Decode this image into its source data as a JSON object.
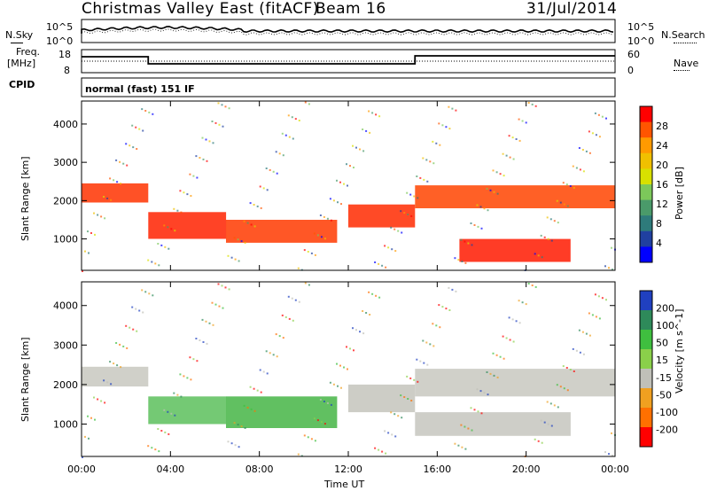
{
  "header": {
    "station": "Christmas Valley East (fitACF)",
    "beam": "Beam 16",
    "date": "31/Jul/2014"
  },
  "panels": {
    "noise_left": "N.Sky",
    "noise_right": "N.Search",
    "noise_scale_top": "10^5",
    "noise_scale_bottom": "10^0",
    "noise_scale_top_r": "10^5",
    "noise_scale_bottom_r": "10^0",
    "freq_label_1": "Freq.",
    "freq_label_2": "[MHz]",
    "freq_tick_top": "18",
    "freq_tick_bottom": "8",
    "nave_label": "Nave",
    "nave_tick_top": "60",
    "nave_tick_bottom": "0",
    "cpid_label": "CPID",
    "cpid_value": "normal (fast) 151 IF"
  },
  "chart_data": [
    {
      "type": "heatmap",
      "ylabel": "Slant Range [km]",
      "xlabel": "",
      "ylim": [
        180,
        4600
      ],
      "y_ticks": [
        "1000",
        "2000",
        "3000",
        "4000"
      ],
      "colorbar_label": "Power [dB]",
      "colorbar_ticks": [
        "28",
        "24",
        "20",
        "16",
        "12",
        "8",
        "4"
      ],
      "colorbar_colors": [
        "#ff0000",
        "#ff5500",
        "#ff9a00",
        "#f0c000",
        "#d8e000",
        "#7cc85a",
        "#4a9a6a",
        "#2e7b7b",
        "#2040a0",
        "#0000ff"
      ],
      "bands": [
        {
          "t0": 0.0,
          "t1": 3.0,
          "r0": 1950,
          "r1": 2450,
          "color": "#ff3300"
        },
        {
          "t0": 3.0,
          "t1": 6.5,
          "r0": 1000,
          "r1": 1700,
          "color": "#ff2200"
        },
        {
          "t0": 6.5,
          "t1": 11.5,
          "r0": 900,
          "r1": 1500,
          "color": "#ff3a00"
        },
        {
          "t0": 12.0,
          "t1": 15.0,
          "r0": 1300,
          "r1": 1900,
          "color": "#ff2a00"
        },
        {
          "t0": 15.0,
          "t1": 24.0,
          "r0": 1800,
          "r1": 2400,
          "color": "#ff4400"
        },
        {
          "t0": 17.0,
          "t1": 22.0,
          "r0": 400,
          "r1": 1000,
          "color": "#ff1a00"
        }
      ]
    },
    {
      "type": "heatmap",
      "ylabel": "Slant Range [km]",
      "xlabel": "Time UT",
      "ylim": [
        180,
        4600
      ],
      "y_ticks": [
        "1000",
        "2000",
        "3000",
        "4000"
      ],
      "x_ticks": [
        "00:00",
        "04:00",
        "08:00",
        "12:00",
        "16:00",
        "20:00",
        "00:00"
      ],
      "colorbar_label": "Velocity [m s^-1]",
      "colorbar_ticks": [
        "200",
        "100",
        "50",
        "15",
        "-15",
        "-50",
        "-100",
        "-200"
      ],
      "colorbar_colors": [
        "#2040c0",
        "#2e8a5a",
        "#3fbf3f",
        "#8ad04a",
        "#c0c0b8",
        "#f0a020",
        "#ff7000",
        "#ff0000"
      ],
      "bands": [
        {
          "t0": 0.0,
          "t1": 3.0,
          "r0": 1950,
          "r1": 2450,
          "color": "#c8c8c0"
        },
        {
          "t0": 3.0,
          "t1": 6.5,
          "r0": 1000,
          "r1": 1700,
          "color": "#5cc05c"
        },
        {
          "t0": 6.5,
          "t1": 11.5,
          "r0": 900,
          "r1": 1700,
          "color": "#45b545"
        },
        {
          "t0": 12.0,
          "t1": 15.0,
          "r0": 1300,
          "r1": 2000,
          "color": "#c4c4bc"
        },
        {
          "t0": 15.0,
          "t1": 24.0,
          "r0": 1700,
          "r1": 2400,
          "color": "#c8c8c0"
        },
        {
          "t0": 15.0,
          "t1": 22.0,
          "r0": 700,
          "r1": 1300,
          "color": "#c6c6be"
        }
      ]
    }
  ]
}
